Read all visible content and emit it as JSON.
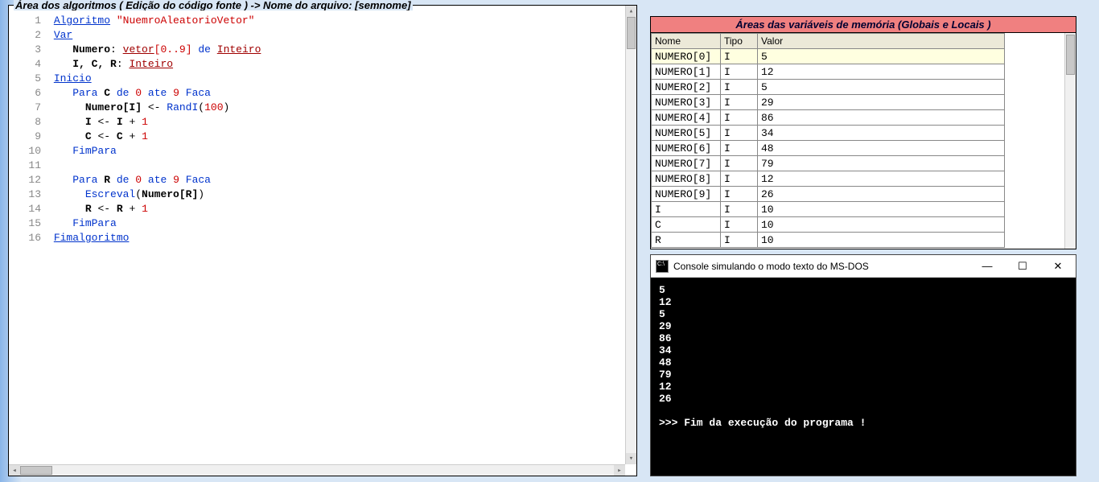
{
  "code_panel": {
    "title": "Área dos algoritmos ( Edição do código fonte ) -> Nome do arquivo: [semnome]",
    "lines": {
      "l1_kw": "Algoritmo",
      "l1_str": "\"NuemroAleatorioVetor\"",
      "l2_kw": "Var",
      "l3_ident": "Numero",
      "l3_colon": ":",
      "l3_typ": "vetor",
      "l3_br": "[",
      "l3_n0": "0",
      "l3_dots": "..",
      "l3_n9": "9",
      "l3_br2": "]",
      "l3_de": "de",
      "l3_int": "Inteiro",
      "l4_ident": "I, C, R",
      "l4_colon": ":",
      "l4_int": "Inteiro",
      "l5_kw": "Inicio",
      "l6_para": "Para",
      "l6_c": "C",
      "l6_de": "de",
      "l6_n0": "0",
      "l6_ate": "ate",
      "l6_n9": "9",
      "l6_faca": "Faca",
      "l7_num": "Numero",
      "l7_br": "[I]",
      "l7_arrow": "<-",
      "l7_fn": "RandI",
      "l7_paren": "(",
      "l7_100": "100",
      "l7_paren2": ")",
      "l8_i": "I",
      "l8_arrow": "<-",
      "l8_i2": "I",
      "l8_plus": "+",
      "l8_1": "1",
      "l9_c": "C",
      "l9_arrow": "<-",
      "l9_c2": "C",
      "l9_plus": "+",
      "l9_1": "1",
      "l10_fp": "FimPara",
      "l12_para": "Para",
      "l12_r": "R",
      "l12_de": "de",
      "l12_n0": "0",
      "l12_ate": "ate",
      "l12_n9": "9",
      "l12_faca": "Faca",
      "l13_esc": "Escreval",
      "l13_paren": "(",
      "l13_num": "Numero",
      "l13_br": "[R]",
      "l13_paren2": ")",
      "l14_r": "R",
      "l14_arrow": "<-",
      "l14_r2": "R",
      "l14_plus": "+",
      "l14_1": "1",
      "l15_fp": "FimPara",
      "l16_fa": "Fimalgoritmo"
    }
  },
  "vars_panel": {
    "title": "Áreas das variáveis de memória (Globais e Locais )",
    "headers": {
      "nome": "Nome",
      "tipo": "Tipo",
      "valor": "Valor"
    },
    "rows": [
      {
        "nome": "NUMERO[0]",
        "tipo": "I",
        "valor": "5",
        "hl": true
      },
      {
        "nome": "NUMERO[1]",
        "tipo": "I",
        "valor": "12"
      },
      {
        "nome": "NUMERO[2]",
        "tipo": "I",
        "valor": "5"
      },
      {
        "nome": "NUMERO[3]",
        "tipo": "I",
        "valor": "29"
      },
      {
        "nome": "NUMERO[4]",
        "tipo": "I",
        "valor": "86"
      },
      {
        "nome": "NUMERO[5]",
        "tipo": "I",
        "valor": "34"
      },
      {
        "nome": "NUMERO[6]",
        "tipo": "I",
        "valor": "48"
      },
      {
        "nome": "NUMERO[7]",
        "tipo": "I",
        "valor": "79"
      },
      {
        "nome": "NUMERO[8]",
        "tipo": "I",
        "valor": "12"
      },
      {
        "nome": "NUMERO[9]",
        "tipo": "I",
        "valor": "26"
      },
      {
        "nome": "I",
        "tipo": "I",
        "valor": "10"
      },
      {
        "nome": "C",
        "tipo": "I",
        "valor": "10"
      },
      {
        "nome": "R",
        "tipo": "I",
        "valor": "10"
      }
    ]
  },
  "console": {
    "title": "Console simulando o modo texto do MS-DOS",
    "min": "—",
    "max": "☐",
    "close": "✕",
    "lines": [
      "5",
      "12",
      "5",
      "29",
      "86",
      "34",
      "48",
      "79",
      "12",
      "26",
      "",
      ">>> Fim da execução do programa !"
    ]
  },
  "colors": {
    "vars_title_bg": "#f08080",
    "console_bg": "#000000",
    "console_fg": "#ffffff"
  }
}
